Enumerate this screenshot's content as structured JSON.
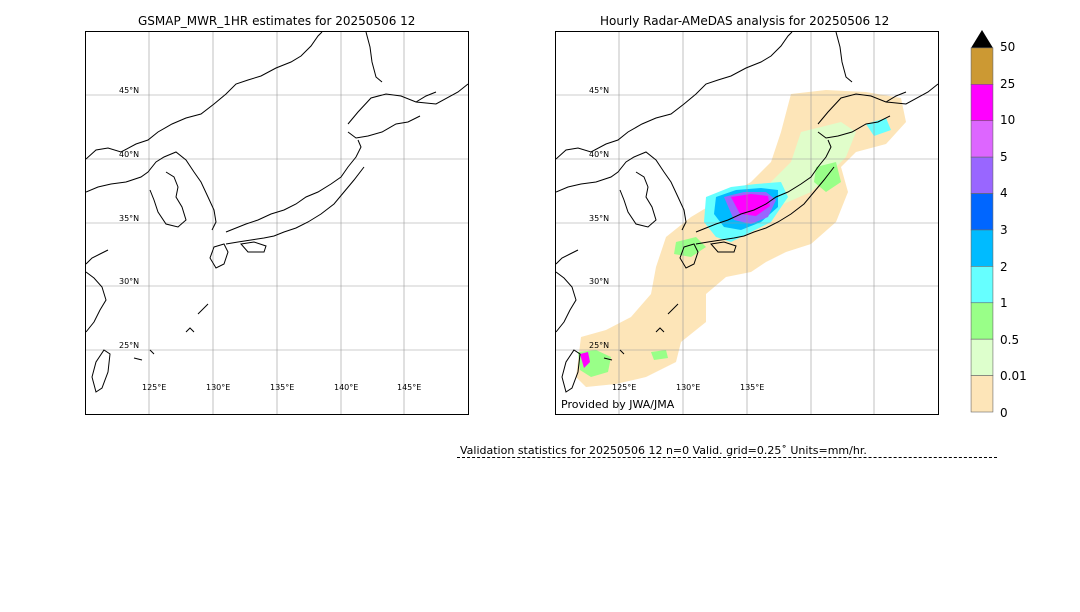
{
  "left_panel": {
    "title": "GSMAP_MWR_1HR estimates for 20250506 12",
    "lat_labels": [
      "45°N",
      "40°N",
      "35°N",
      "30°N",
      "25°N"
    ],
    "lon_labels": [
      "125°E",
      "130°E",
      "135°E",
      "140°E",
      "145°E"
    ]
  },
  "right_panel": {
    "title": "Hourly Radar-AMeDAS analysis for 20250506 12",
    "lat_labels": [
      "45°N",
      "40°N",
      "35°N",
      "30°N",
      "25°N"
    ],
    "lon_labels": [
      "125°E",
      "130°E",
      "135°E"
    ],
    "credit": "Provided by JWA/JMA"
  },
  "colorbar": {
    "labels": [
      "50",
      "25",
      "10",
      "5",
      "4",
      "3",
      "2",
      "1",
      "0.5",
      "0.01",
      "0"
    ],
    "colors": [
      "#cc9933",
      "#ff00ff",
      "#dd66ff",
      "#9966ff",
      "#0066ff",
      "#00bbff",
      "#66ffff",
      "#99ff88",
      "#ddffcc",
      "#fde5b8"
    ],
    "extend_color": "#000000"
  },
  "validation": {
    "text": "Validation statistics for 20250506 12  n=0 Valid. grid=0.25˚ Units=mm/hr."
  }
}
